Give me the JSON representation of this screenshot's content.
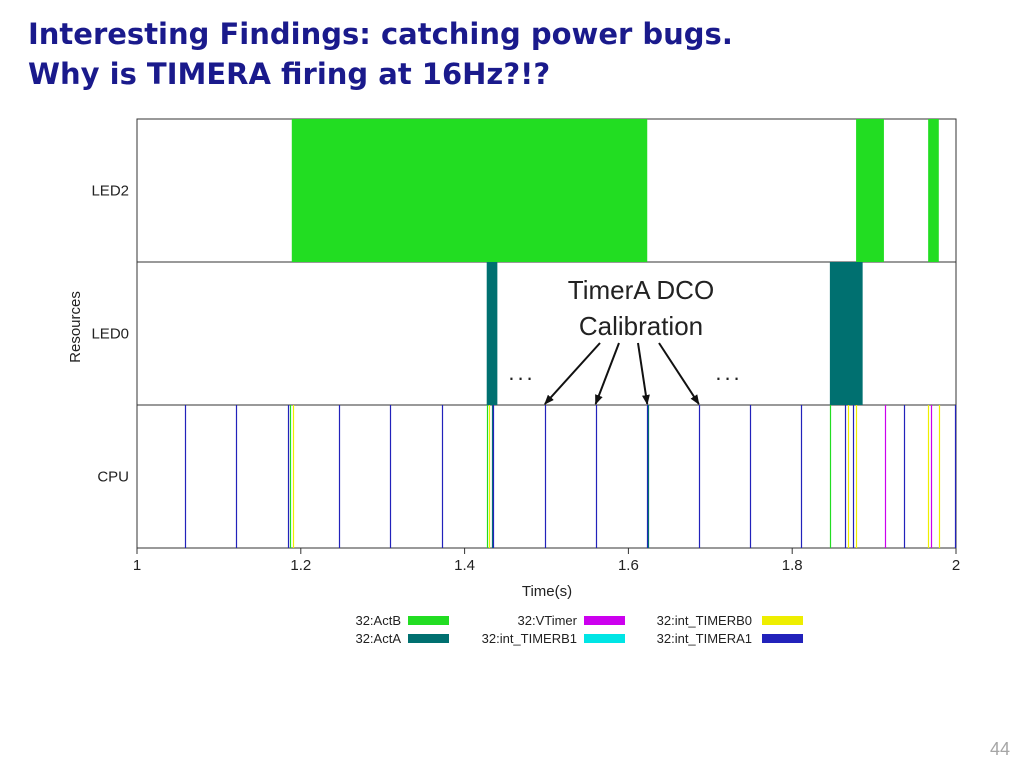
{
  "slide": {
    "title_line1": "Interesting Findings: catching power bugs.",
    "title_line2": "Why is TIMERA firing at 16Hz?!?",
    "page_number": "44"
  },
  "chart_data": {
    "type": "timeline",
    "xlabel": "Time(s)",
    "ylabel": "Resources",
    "xlim": [
      1.0,
      2.0
    ],
    "x_ticks": [
      1,
      1.2,
      1.4,
      1.6,
      1.8,
      2
    ],
    "x_tick_labels": [
      "1",
      "1.2",
      "1.4",
      "1.6",
      "1.8",
      "2"
    ],
    "rows": [
      "LED2",
      "LED0",
      "CPU"
    ],
    "series_colors": {
      "32:ActB": "#22dd22",
      "32:ActA": "#007070",
      "32:VTimer": "#cc00ee",
      "32:int_TIMERB1": "#00e5e5",
      "32:int_TIMERB0": "#eeee00",
      "32:int_TIMERA1": "#2222bb"
    },
    "legend": [
      {
        "label": "32:ActB",
        "color": "#22dd22"
      },
      {
        "label": "32:VTimer",
        "color": "#cc00ee"
      },
      {
        "label": "32:int_TIMERB0",
        "color": "#eeee00"
      },
      {
        "label": "32:ActA",
        "color": "#007070"
      },
      {
        "label": "32:int_TIMERB1",
        "color": "#00e5e5"
      },
      {
        "label": "32:int_TIMERA1",
        "color": "#2222bb"
      }
    ],
    "spans": [
      {
        "row": "LED2",
        "series": "32:ActB",
        "start": 1.189,
        "end": 1.623
      },
      {
        "row": "LED2",
        "series": "32:ActB",
        "start": 1.878,
        "end": 1.912
      },
      {
        "row": "LED2",
        "series": "32:ActB",
        "start": 1.966,
        "end": 1.979
      },
      {
        "row": "LED0",
        "series": "32:ActA",
        "start": 1.427,
        "end": 1.44
      },
      {
        "row": "LED0",
        "series": "32:ActA",
        "start": 1.846,
        "end": 1.886
      }
    ],
    "events": [
      {
        "row": "CPU",
        "series": "32:int_TIMERA1",
        "t": 1.058
      },
      {
        "row": "CPU",
        "series": "32:int_TIMERA1",
        "t": 1.121
      },
      {
        "row": "CPU",
        "series": "32:int_TIMERA1",
        "t": 1.184
      },
      {
        "row": "CPU",
        "series": "32:ActB",
        "t": 1.187
      },
      {
        "row": "CPU",
        "series": "32:int_TIMERB0",
        "t": 1.19
      },
      {
        "row": "CPU",
        "series": "32:int_TIMERA1",
        "t": 1.247
      },
      {
        "row": "CPU",
        "series": "32:int_TIMERA1",
        "t": 1.309
      },
      {
        "row": "CPU",
        "series": "32:int_TIMERA1",
        "t": 1.372
      },
      {
        "row": "CPU",
        "series": "32:ActB",
        "t": 1.427
      },
      {
        "row": "CPU",
        "series": "32:int_TIMERB0",
        "t": 1.43
      },
      {
        "row": "CPU",
        "series": "32:ActA",
        "t": 1.433
      },
      {
        "row": "CPU",
        "series": "32:int_TIMERA1",
        "t": 1.435
      },
      {
        "row": "CPU",
        "series": "32:int_TIMERA1",
        "t": 1.498
      },
      {
        "row": "CPU",
        "series": "32:int_TIMERA1",
        "t": 1.56
      },
      {
        "row": "CPU",
        "series": "32:int_TIMERA1",
        "t": 1.623
      },
      {
        "row": "CPU",
        "series": "32:ActA",
        "t": 1.624
      },
      {
        "row": "CPU",
        "series": "32:int_TIMERA1",
        "t": 1.686
      },
      {
        "row": "CPU",
        "series": "32:int_TIMERA1",
        "t": 1.749
      },
      {
        "row": "CPU",
        "series": "32:int_TIMERA1",
        "t": 1.811
      },
      {
        "row": "CPU",
        "series": "32:ActB",
        "t": 1.846
      },
      {
        "row": "CPU",
        "series": "32:int_TIMERA1",
        "t": 1.864
      },
      {
        "row": "CPU",
        "series": "32:int_TIMERB0",
        "t": 1.868
      },
      {
        "row": "CPU",
        "series": "32:int_TIMERA1",
        "t": 1.874
      },
      {
        "row": "CPU",
        "series": "32:int_TIMERB0",
        "t": 1.878
      },
      {
        "row": "CPU",
        "series": "32:VTimer",
        "t": 1.913
      },
      {
        "row": "CPU",
        "series": "32:int_TIMERA1",
        "t": 1.937
      },
      {
        "row": "CPU",
        "series": "32:int_TIMERB0",
        "t": 1.966
      },
      {
        "row": "CPU",
        "series": "32:VTimer",
        "t": 1.969
      },
      {
        "row": "CPU",
        "series": "32:int_TIMERB0",
        "t": 1.979
      },
      {
        "row": "CPU",
        "series": "32:int_TIMERA1",
        "t": 1.999
      }
    ],
    "annotation": {
      "text_line1": "TimerA DCO",
      "text_line2": "Calibration",
      "ellipsis": "...",
      "arrow_targets": [
        1.498,
        1.56,
        1.623,
        1.686
      ]
    }
  }
}
